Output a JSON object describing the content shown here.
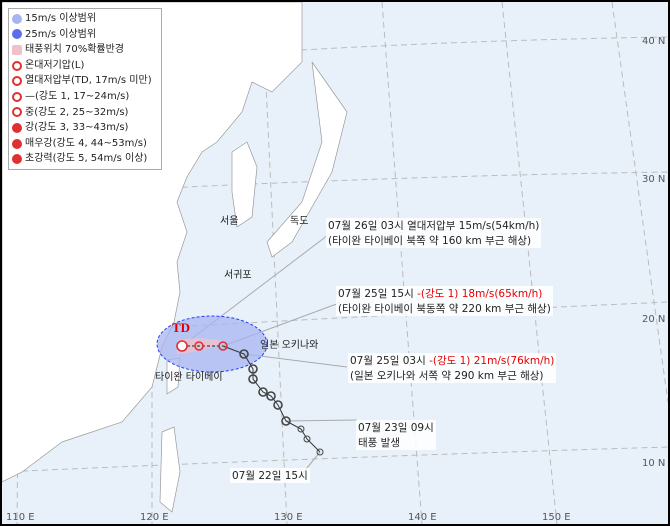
{
  "legend": [
    {
      "icon": "circle-light-blue",
      "label": "15m/s 이상범위",
      "color": "#a8b4f0"
    },
    {
      "icon": "circle-blue",
      "label": "25m/s 이상범위",
      "color": "#5a6cf0"
    },
    {
      "icon": "circle-pink",
      "label": "태풍위치 70%확률반경",
      "color": "#f0c0cc"
    },
    {
      "icon": "extratropical-low-icon",
      "label": "온대저기압(L)",
      "color": "#e03030"
    },
    {
      "icon": "td-icon",
      "label": "열대저압부(TD, 17m/s 미만)",
      "color": "#e03030"
    },
    {
      "icon": "typhoon-weak-icon",
      "label": "—(강도 1, 17~24m/s)",
      "color": "#e03030"
    },
    {
      "icon": "typhoon-medium-icon",
      "label": "중(강도 2, 25~32m/s)",
      "color": "#e03030"
    },
    {
      "icon": "typhoon-strong-icon",
      "label": "강(강도 3, 33~43m/s)",
      "color": "#e03030"
    },
    {
      "icon": "typhoon-very-strong-icon",
      "label": "매우강(강도 4, 44~53m/s)",
      "color": "#e03030"
    },
    {
      "icon": "typhoon-super-icon",
      "label": "초강력(강도 5, 54m/s 이상)",
      "color": "#e03030"
    }
  ],
  "cities": [
    "서울",
    "독도",
    "서귀포",
    "일본 오키나와",
    "타이완 타이베이"
  ],
  "td_label": "TD",
  "annotations": [
    {
      "line1": "07월 26일 03시 열대저압부 15m/s(54km/h)",
      "line2": "(타이완 타이베이 북쪽 약 160 km 부근 해상)"
    },
    {
      "line1a": "07월 25일 15시 ",
      "line1b": "-(강도 1) 18m/s(65km/h)",
      "line2": "(타이완 타이베이 북동쪽 약 220 km 부근 해상)"
    },
    {
      "line1a": "07월 25일 03시 ",
      "line1b": "-(강도 1) 21m/s(76km/h)",
      "line2": "(일본 오키나와 서쪽 약 290 km 부근 해상)"
    },
    {
      "line1": "07월 23일 09시",
      "line2": "태풍 발생"
    },
    {
      "line1": "07월 22일 15시"
    }
  ],
  "lon_labels": [
    "110 E",
    "120 E",
    "130 E",
    "140 E",
    "150 E"
  ],
  "lat_labels": [
    "40 N",
    "30 N",
    "20 N",
    "10 N"
  ],
  "colors": {
    "sea": "#e8f1fa",
    "land": "#ffffff",
    "forecast": "#e03030",
    "past": "#555555",
    "radius15": "#a8b4f0"
  }
}
